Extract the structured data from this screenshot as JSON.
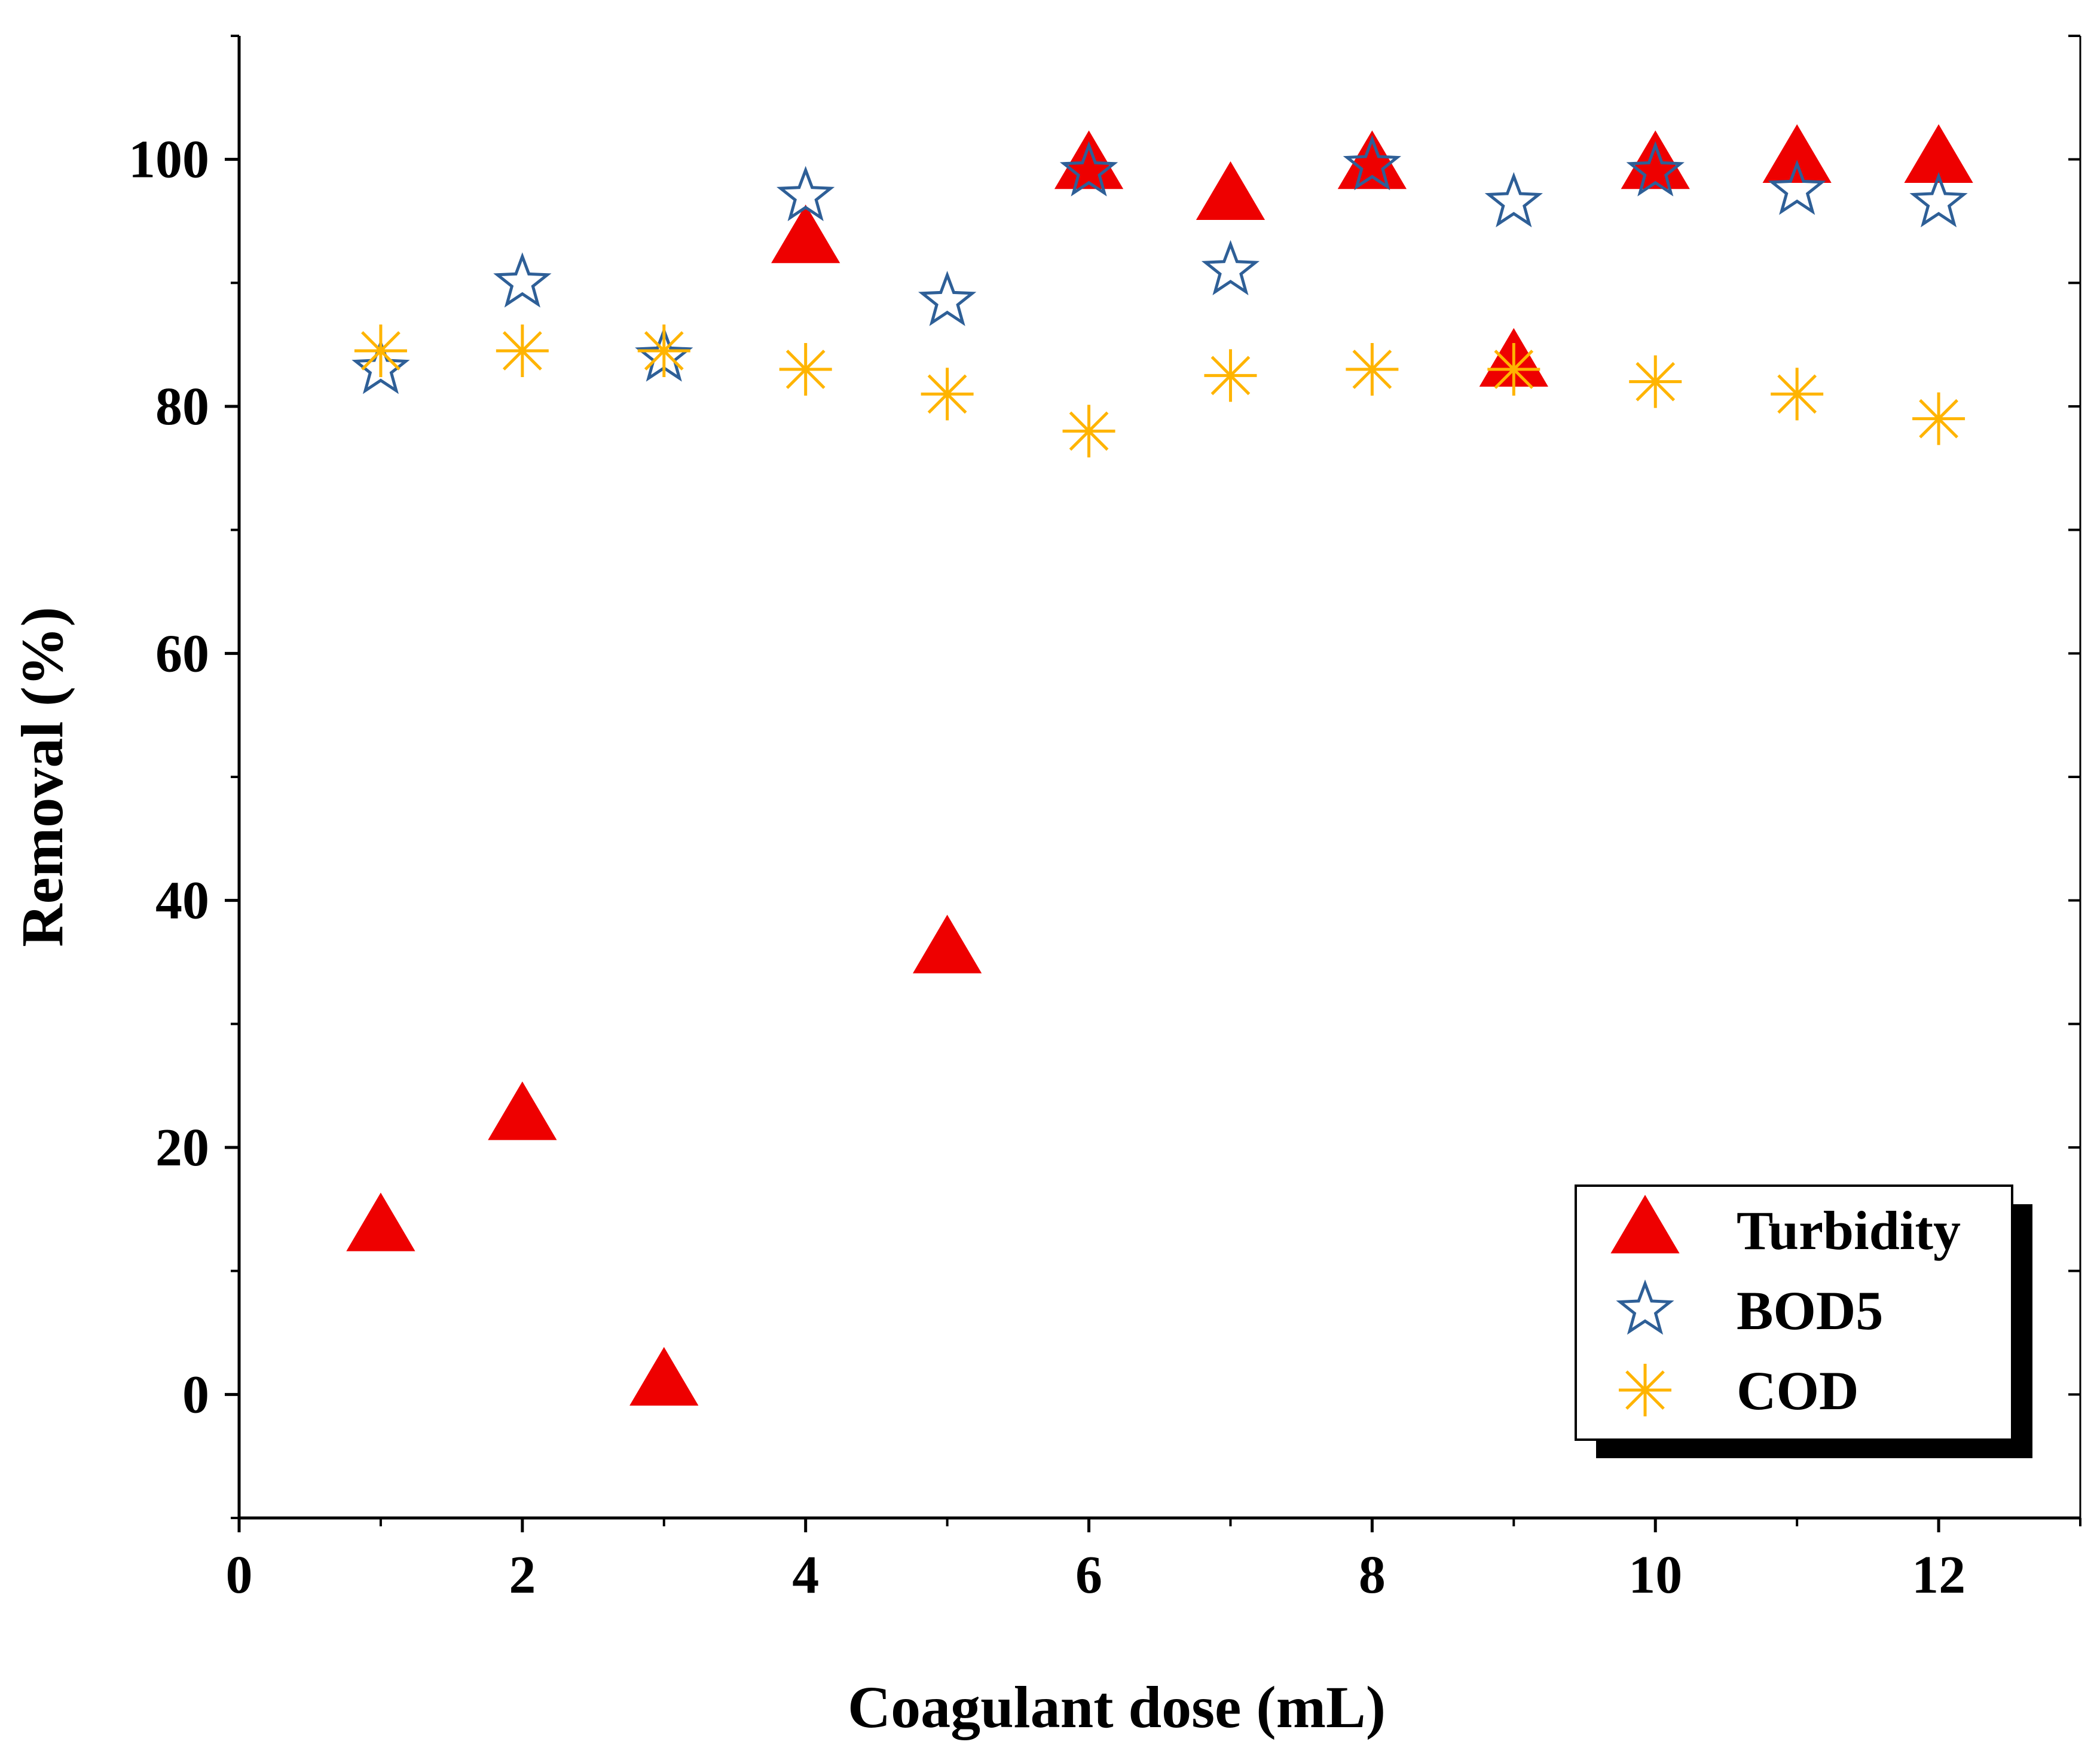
{
  "chart_data": {
    "type": "scatter",
    "title": "",
    "xlabel": "Coagulant dose (mL)",
    "ylabel": "Removal (%)",
    "xlim": [
      0,
      13
    ],
    "ylim": [
      -10,
      110
    ],
    "xticks": [
      0,
      2,
      4,
      6,
      8,
      10,
      12
    ],
    "yticks": [
      0,
      20,
      40,
      60,
      80,
      100
    ],
    "grid": false,
    "legend_position": "bottom-right",
    "series": [
      {
        "name": "Turbidity",
        "marker": "filled-triangle",
        "color": "#ee0000",
        "x": [
          1,
          2,
          3,
          4,
          5,
          6,
          7,
          8,
          9,
          10,
          11,
          12
        ],
        "y": [
          13.5,
          22.5,
          1,
          93.5,
          36,
          99.5,
          97,
          99.5,
          83.5,
          99.5,
          100,
          100
        ]
      },
      {
        "name": "BOD5",
        "marker": "hollow-star",
        "color": "#2e5f97",
        "x": [
          1,
          2,
          3,
          4,
          5,
          6,
          7,
          8,
          9,
          10,
          11,
          12
        ],
        "y": [
          83,
          90,
          84,
          97,
          88.5,
          99,
          91,
          99.5,
          96.5,
          99,
          97.5,
          96.5
        ]
      },
      {
        "name": "COD",
        "marker": "asterisk",
        "color": "#ffb400",
        "x": [
          1,
          2,
          3,
          4,
          5,
          6,
          7,
          8,
          9,
          10,
          11,
          12
        ],
        "y": [
          84.5,
          84.5,
          84.5,
          83,
          81,
          78,
          82.5,
          83,
          83,
          82,
          81,
          79
        ]
      }
    ]
  }
}
